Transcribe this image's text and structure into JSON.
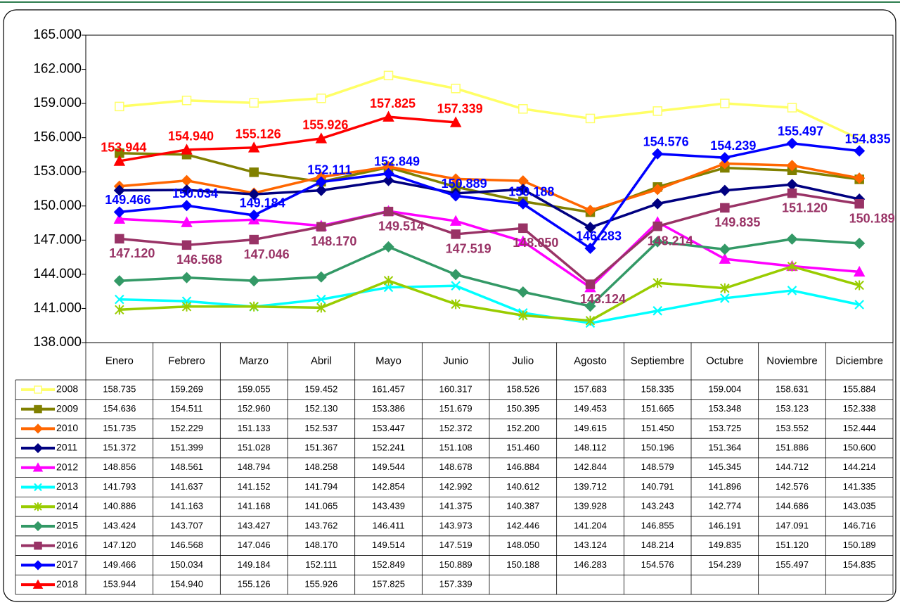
{
  "chart_data": {
    "type": "line",
    "categories": [
      "Enero",
      "Febrero",
      "Marzo",
      "Abril",
      "Mayo",
      "Junio",
      "Julio",
      "Agosto",
      "Septiembre",
      "Octubre",
      "Noviembre",
      "Diciembre"
    ],
    "ylim": [
      138,
      165
    ],
    "yticks": [
      {
        "value": 138,
        "label": "138.000"
      },
      {
        "value": 141,
        "label": "141.000"
      },
      {
        "value": 144,
        "label": "144.000"
      },
      {
        "value": 147,
        "label": "147.000"
      },
      {
        "value": 150,
        "label": "150.000"
      },
      {
        "value": 153,
        "label": "153.000"
      },
      {
        "value": 156,
        "label": "156.000"
      },
      {
        "value": 159,
        "label": "159.000"
      },
      {
        "value": 162,
        "label": "162.000"
      },
      {
        "value": 165,
        "label": "165.000"
      }
    ],
    "grid": false,
    "series": [
      {
        "name": "2008",
        "color": "#ffff66",
        "marker": "square-open",
        "values": [
          158.735,
          159.269,
          159.055,
          159.452,
          161.457,
          160.317,
          158.526,
          157.683,
          158.335,
          159.004,
          158.631,
          155.884
        ],
        "value_labels": [
          "158.735",
          "159.269",
          "159.055",
          "159.452",
          "161.457",
          "160.317",
          "158.526",
          "157.683",
          "158.335",
          "159.004",
          "158.631",
          "155.884"
        ]
      },
      {
        "name": "2009",
        "color": "#808000",
        "marker": "square",
        "values": [
          154.636,
          154.511,
          152.96,
          152.13,
          153.386,
          151.679,
          150.395,
          149.453,
          151.665,
          153.348,
          153.123,
          152.338
        ],
        "value_labels": [
          "154.636",
          "154.511",
          "152.960",
          "152.130",
          "153.386",
          "151.679",
          "150.395",
          "149.453",
          "151.665",
          "153.348",
          "153.123",
          "152.338"
        ]
      },
      {
        "name": "2010",
        "color": "#ff6600",
        "marker": "diamond",
        "values": [
          151.735,
          152.229,
          151.133,
          152.537,
          153.447,
          152.372,
          152.2,
          149.615,
          151.45,
          153.725,
          153.552,
          152.444
        ],
        "value_labels": [
          "151.735",
          "152.229",
          "151.133",
          "152.537",
          "153.447",
          "152.372",
          "152.200",
          "149.615",
          "151.450",
          "153.725",
          "153.552",
          "152.444"
        ]
      },
      {
        "name": "2011",
        "color": "#000080",
        "marker": "diamond",
        "values": [
          151.372,
          151.399,
          151.028,
          151.367,
          152.241,
          151.108,
          151.46,
          148.112,
          150.196,
          151.364,
          151.886,
          150.6
        ],
        "value_labels": [
          "151.372",
          "151.399",
          "151.028",
          "151.367",
          "152.241",
          "151.108",
          "151.460",
          "148.112",
          "150.196",
          "151.364",
          "151.886",
          "150.600"
        ]
      },
      {
        "name": "2012",
        "color": "#ff00ff",
        "marker": "triangle",
        "values": [
          148.856,
          148.561,
          148.794,
          148.258,
          149.544,
          148.678,
          146.884,
          142.844,
          148.579,
          145.345,
          144.712,
          144.214
        ],
        "value_labels": [
          "148.856",
          "148.561",
          "148.794",
          "148.258",
          "149.544",
          "148.678",
          "146.884",
          "142.844",
          "148.579",
          "145.345",
          "144.712",
          "144.214"
        ]
      },
      {
        "name": "2013",
        "color": "#00ffff",
        "marker": "x",
        "values": [
          141.793,
          141.637,
          141.152,
          141.794,
          142.854,
          142.992,
          140.612,
          139.712,
          140.791,
          141.896,
          142.576,
          141.335
        ],
        "value_labels": [
          "141.793",
          "141.637",
          "141.152",
          "141.794",
          "142.854",
          "142.992",
          "140.612",
          "139.712",
          "140.791",
          "141.896",
          "142.576",
          "141.335"
        ]
      },
      {
        "name": "2014",
        "color": "#99cc00",
        "marker": "star",
        "values": [
          140.886,
          141.163,
          141.168,
          141.065,
          143.439,
          141.375,
          140.387,
          139.928,
          143.243,
          142.774,
          144.686,
          143.035
        ],
        "value_labels": [
          "140.886",
          "141.163",
          "141.168",
          "141.065",
          "143.439",
          "141.375",
          "140.387",
          "139.928",
          "143.243",
          "142.774",
          "144.686",
          "143.035"
        ]
      },
      {
        "name": "2015",
        "color": "#339966",
        "marker": "diamond",
        "values": [
          143.424,
          143.707,
          143.427,
          143.762,
          146.411,
          143.973,
          142.446,
          141.204,
          146.855,
          146.191,
          147.091,
          146.716
        ],
        "value_labels": [
          "143.424",
          "143.707",
          "143.427",
          "143.762",
          "146.411",
          "143.973",
          "142.446",
          "141.204",
          "146.855",
          "146.191",
          "147.091",
          "146.716"
        ]
      },
      {
        "name": "2016",
        "color": "#993366",
        "marker": "square",
        "show_labels": true,
        "values": [
          147.12,
          146.568,
          147.046,
          148.17,
          149.514,
          147.519,
          148.05,
          143.124,
          148.214,
          149.835,
          151.12,
          150.189
        ],
        "value_labels": [
          "147.120",
          "146.568",
          "147.046",
          "148.170",
          "149.514",
          "147.519",
          "148.050",
          "143.124",
          "148.214",
          "149.835",
          "151.120",
          "150.189"
        ]
      },
      {
        "name": "2017",
        "color": "#0000ff",
        "marker": "diamond",
        "show_labels": true,
        "values": [
          149.466,
          150.034,
          149.184,
          152.111,
          152.849,
          150.889,
          150.188,
          146.283,
          154.576,
          154.239,
          155.497,
          154.835
        ],
        "value_labels": [
          "149.466",
          "150.034",
          "149.184",
          "152.111",
          "152.849",
          "150.889",
          "150.188",
          "146.283",
          "154.576",
          "154.239",
          "155.497",
          "154.835"
        ]
      },
      {
        "name": "2018",
        "color": "#ff0000",
        "marker": "triangle",
        "show_labels": true,
        "values": [
          153.944,
          154.94,
          155.126,
          155.926,
          157.825,
          157.339,
          null,
          null,
          null,
          null,
          null,
          null
        ],
        "value_labels": [
          "153.944",
          "154.940",
          "155.126",
          "155.926",
          "157.825",
          "157.339",
          null,
          null,
          null,
          null,
          null,
          null
        ]
      }
    ]
  }
}
